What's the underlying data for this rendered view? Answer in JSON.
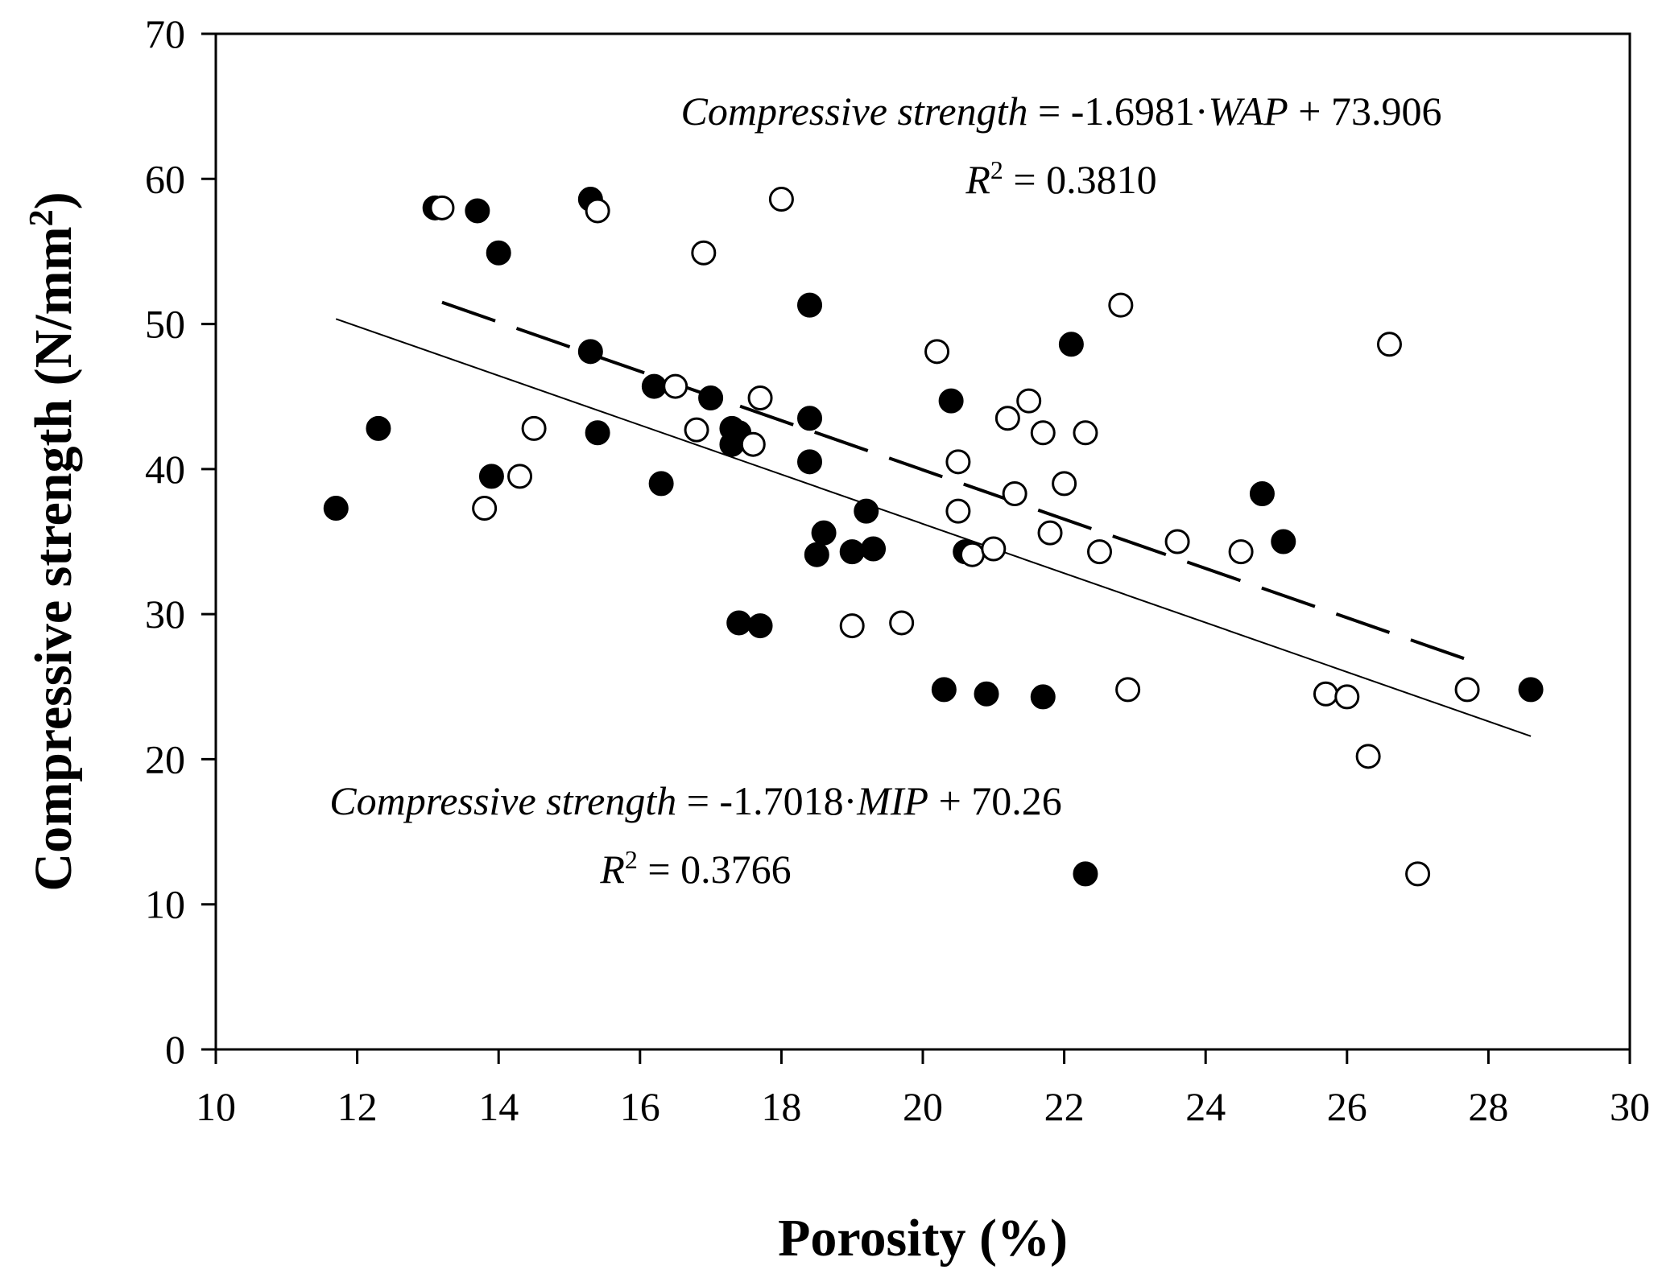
{
  "chart_data": {
    "type": "scatter",
    "title": "",
    "xlabel": "Porosity (%)",
    "ylabel_main": "Compressive strength (N/mm",
    "ylabel_sup": "2",
    "ylabel_close": ")",
    "xlim": [
      10,
      30
    ],
    "ylim": [
      0,
      70
    ],
    "xticks": [
      "10",
      "12",
      "14",
      "16",
      "18",
      "20",
      "22",
      "24",
      "26",
      "28",
      "30"
    ],
    "yticks": [
      "0",
      "10",
      "20",
      "30",
      "40",
      "50",
      "60",
      "70"
    ],
    "series": [
      {
        "name": "MIP",
        "marker": "filled-circle",
        "x": [
          11.7,
          12.3,
          13.1,
          13.7,
          13.9,
          14.0,
          15.3,
          15.3,
          15.4,
          16.2,
          16.3,
          17.0,
          17.3,
          17.3,
          17.4,
          17.4,
          17.7,
          18.4,
          18.4,
          18.4,
          18.5,
          18.6,
          19.0,
          19.2,
          19.3,
          20.3,
          20.4,
          20.6,
          20.9,
          21.7,
          22.1,
          22.3,
          24.8,
          25.1,
          28.6
        ],
        "y": [
          37.3,
          42.8,
          58.0,
          57.8,
          39.5,
          54.9,
          48.1,
          58.6,
          42.5,
          45.7,
          39.0,
          44.9,
          42.8,
          41.7,
          29.4,
          42.5,
          29.2,
          51.3,
          43.5,
          40.5,
          34.1,
          35.6,
          34.3,
          37.1,
          34.5,
          24.8,
          44.7,
          34.3,
          24.5,
          24.3,
          48.6,
          12.1,
          38.3,
          35.0,
          24.8
        ],
        "fit_label": "Compressive strength",
        "fit_rhs": " = -1.7018·",
        "fit_var": "MIP",
        "fit_const": " + 70.26",
        "fit_slope": -1.7018,
        "fit_intercept": 70.26,
        "fit_x_range": [
          11.7,
          28.6
        ],
        "r2_sym": "R",
        "r2_sup": "2",
        "r2_value": " = 0.3766",
        "line_style": "solid"
      },
      {
        "name": "WAP",
        "marker": "open-circle",
        "x": [
          13.2,
          13.8,
          14.3,
          14.5,
          15.4,
          16.5,
          16.8,
          16.9,
          17.6,
          17.7,
          18.0,
          19.0,
          19.7,
          20.2,
          20.5,
          20.5,
          20.7,
          21.0,
          21.2,
          21.3,
          21.5,
          21.7,
          21.8,
          22.0,
          22.3,
          22.5,
          22.8,
          22.9,
          23.6,
          24.5,
          25.7,
          26.0,
          26.3,
          26.6,
          27.0,
          27.7
        ],
        "y": [
          58.0,
          37.3,
          39.5,
          42.8,
          57.8,
          45.7,
          42.7,
          54.9,
          41.7,
          44.9,
          58.6,
          29.2,
          29.4,
          48.1,
          40.5,
          37.1,
          34.1,
          34.5,
          43.5,
          38.3,
          44.7,
          42.5,
          35.6,
          39.0,
          42.5,
          34.3,
          51.3,
          24.8,
          35.0,
          34.3,
          24.5,
          24.3,
          20.2,
          48.6,
          12.1,
          24.8
        ],
        "fit_label": "Compressive strength",
        "fit_rhs": " = -1.6981·",
        "fit_var": "WAP",
        "fit_const": " + 73.906",
        "fit_slope": -1.6981,
        "fit_intercept": 73.906,
        "fit_x_range": [
          13.2,
          27.7
        ],
        "r2_sym": "R",
        "r2_sup": "2",
        "r2_value": " = 0.3810",
        "line_style": "dashed"
      }
    ],
    "grid": false,
    "legend": "none"
  }
}
